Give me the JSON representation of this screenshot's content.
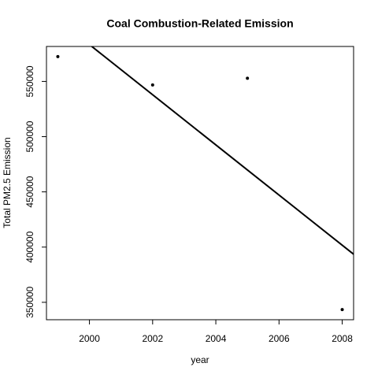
{
  "chart_data": {
    "type": "scatter",
    "title": "Coal Combustion-Related Emission",
    "x_label": "year",
    "y_label": "Total PM2.5 Emission",
    "x": [
      1999,
      2002,
      2005,
      2008
    ],
    "values": [
      572500,
      546800,
      552900,
      343400
    ],
    "color": "#000000",
    "trendline": "linear",
    "xlim": [
      1998.64,
      2008.36
    ],
    "ylim": [
      334236,
      581664
    ],
    "xticks": [
      2000,
      2002,
      2004,
      2006,
      2008
    ],
    "yticks": [
      350000,
      400000,
      450000,
      500000,
      550000
    ]
  }
}
